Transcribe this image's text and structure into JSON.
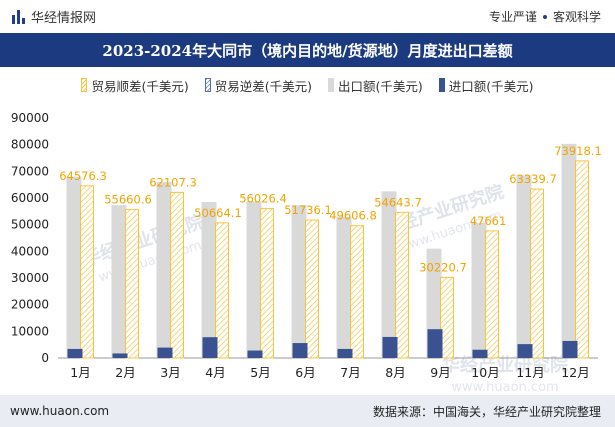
{
  "header": {
    "brand": "华经情报网",
    "tagline_left": "专业严谨",
    "tagline_right": "客观科学"
  },
  "title": "2023-2024年大同市（境内目的地/货源地）月度进出口差额",
  "legend": {
    "surplus": "贸易顺差(千美元)",
    "deficit": "贸易逆差(千美元)",
    "export": "出口额(千美元)",
    "import": "进口额(千美元)"
  },
  "colors": {
    "title_bar": "#1c3a7f",
    "export": "#d9d9d9",
    "import": "#3a528f",
    "surplus": "#f5c542",
    "label": "#f0a500"
  },
  "chart_data": {
    "type": "bar",
    "categories": [
      "1月",
      "2月",
      "3月",
      "4月",
      "5月",
      "6月",
      "7月",
      "8月",
      "9月",
      "10月",
      "11月",
      "12月"
    ],
    "series": [
      {
        "name": "贸易顺差(千美元)",
        "values": [
          64576.3,
          55660.6,
          62107.3,
          50664.1,
          56026.4,
          51736.1,
          49606.8,
          54643.7,
          30220.7,
          47661,
          63339.7,
          73918.1
        ]
      },
      {
        "name": "贸易逆差(千美元)",
        "values": [
          0,
          0,
          0,
          0,
          0,
          0,
          0,
          0,
          0,
          0,
          0,
          0
        ]
      },
      {
        "name": "出口额(千美元)",
        "values": [
          68000,
          57300,
          66000,
          58500,
          58800,
          57300,
          53000,
          62500,
          41000,
          50700,
          68500,
          80300
        ]
      },
      {
        "name": "进口额(千美元)",
        "values": [
          3400,
          1700,
          3900,
          7800,
          2800,
          5600,
          3400,
          7900,
          10800,
          3100,
          5200,
          6400
        ]
      }
    ],
    "data_labels": [
      "64576.3",
      "55660.6",
      "62107.3",
      "50664.1",
      "56026.4",
      "51736.1",
      "49606.8",
      "54643.7",
      "30220.7",
      "47661",
      "63339.7",
      "73918.1"
    ],
    "yticks": [
      "0",
      "10000",
      "20000",
      "30000",
      "40000",
      "50000",
      "60000",
      "70000",
      "80000",
      "90000"
    ],
    "ylim": [
      0,
      90000
    ],
    "grid": false,
    "legend_position": "top"
  },
  "watermarks": [
    "华经产业研究院",
    "www.huaon.com"
  ],
  "footer": {
    "website": "www.huaon.com",
    "source": "数据来源：中国海关，华经产业研究院整理"
  }
}
